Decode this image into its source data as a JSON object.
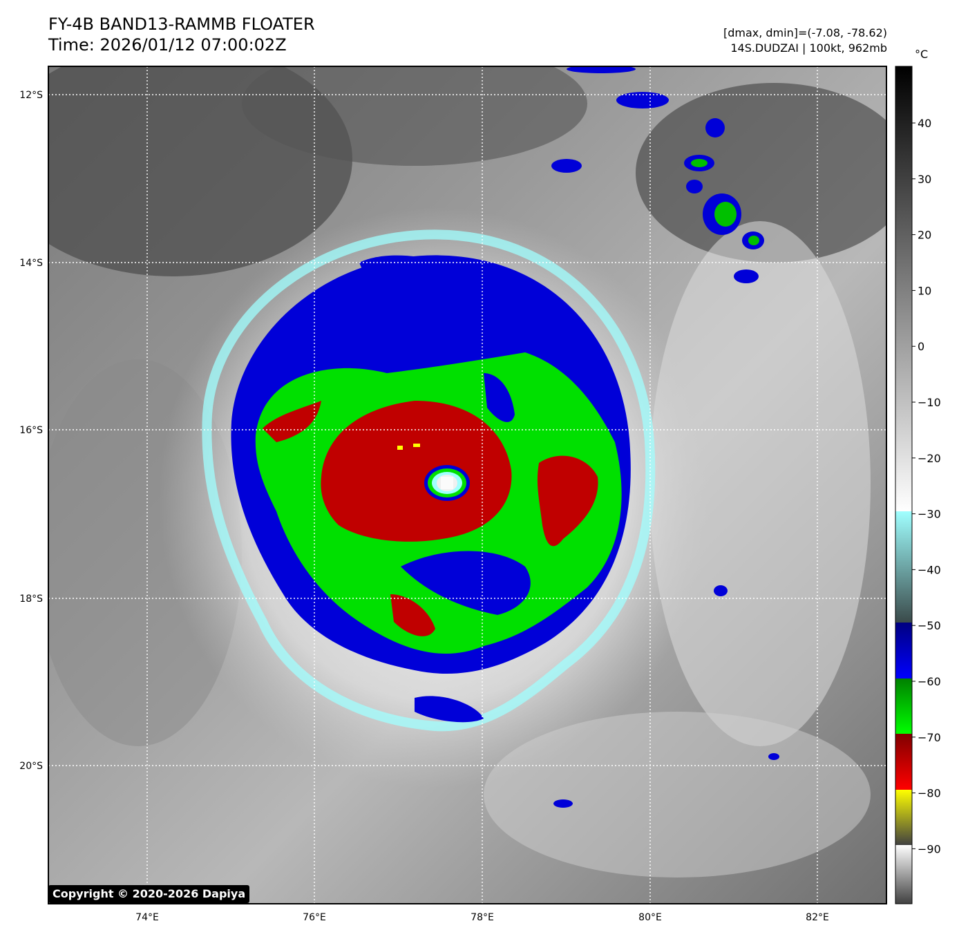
{
  "header": {
    "title": "FY-4B BAND13-RAMMB FLOATER",
    "time": "Time: 2026/01/12 07:00:02Z",
    "dmax_dmin": "[dmax, dmin]=(-7.08, -78.62)",
    "storm": "14S.DUDZAI | 100kt, 962mb"
  },
  "map": {
    "lat_ticks": [
      "12°S",
      "14°S",
      "16°S",
      "18°S",
      "20°S"
    ],
    "lon_ticks": [
      "74°E",
      "76°E",
      "78°E",
      "80°E",
      "82°E"
    ],
    "grid": "dotted white"
  },
  "colorbar": {
    "unit": "°C",
    "ticks": [
      "40",
      "30",
      "20",
      "10",
      "0",
      "−10",
      "−20",
      "−30",
      "−40",
      "−50",
      "−60",
      "−70",
      "−80",
      "−90"
    ],
    "colors": {
      "blue": "#0000d8",
      "green": "#00e000",
      "red": "#c00000",
      "yellow": "#ffff00",
      "cyan": "#a0ffff"
    }
  },
  "copyright": "Copyright © 2020-2026 Dapiya"
}
